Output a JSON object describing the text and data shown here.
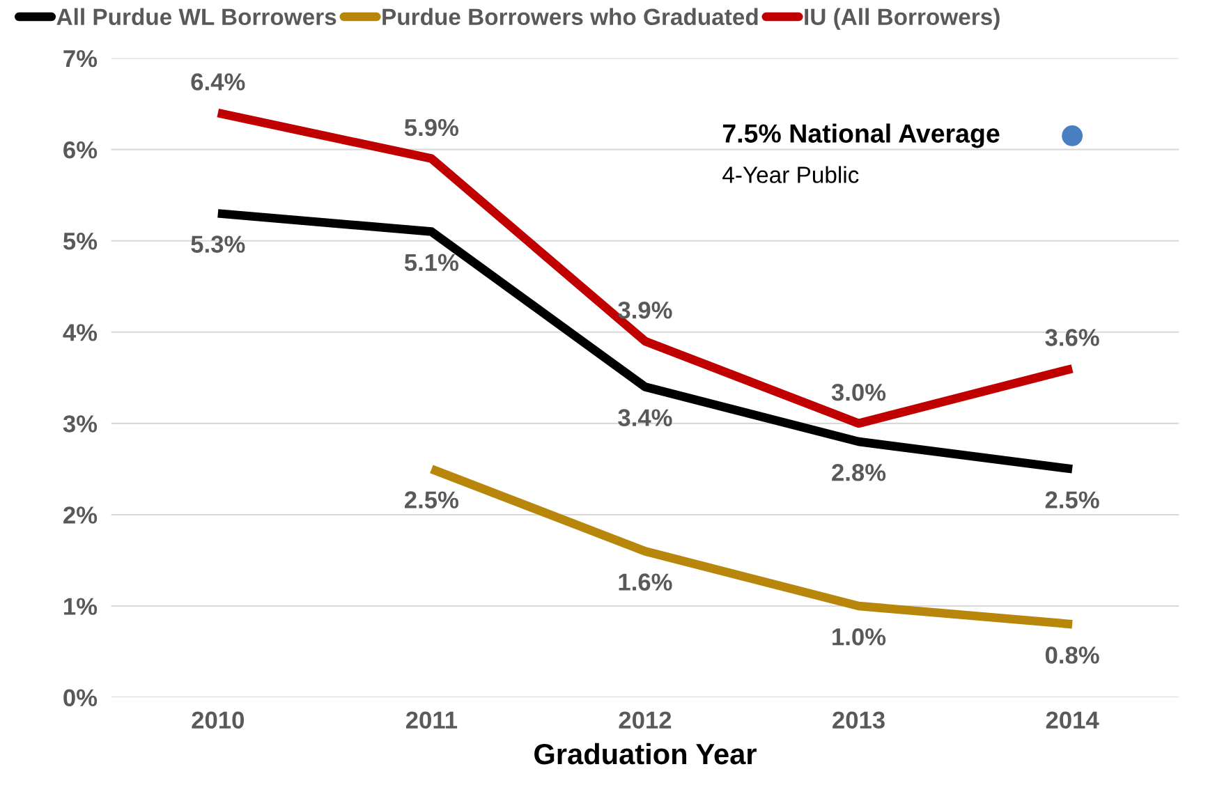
{
  "chart_data": {
    "type": "line",
    "xlabel": "Graduation Year",
    "categories": [
      "2010",
      "2011",
      "2012",
      "2013",
      "2014"
    ],
    "series": [
      {
        "name": "All Purdue WL Borrowers",
        "color": "#000000",
        "values": [
          5.3,
          5.1,
          3.4,
          2.8,
          2.5
        ],
        "value_labels": [
          "5.3%",
          "5.1%",
          "3.4%",
          "2.8%",
          "2.5%"
        ]
      },
      {
        "name": "Purdue Borrowers who Graduated",
        "color": "#b8860b",
        "values": [
          null,
          2.5,
          1.6,
          1.0,
          0.8
        ],
        "value_labels": [
          null,
          "2.5%",
          "1.6%",
          "1.0%",
          "0.8%"
        ]
      },
      {
        "name": "IU (All Borrowers)",
        "color": "#c00000",
        "values": [
          6.4,
          5.9,
          3.9,
          3.0,
          3.6
        ],
        "value_labels": [
          "6.4%",
          "5.9%",
          "3.9%",
          "3.0%",
          "3.6%"
        ]
      }
    ],
    "ylim": [
      0,
      7
    ],
    "yticks": [
      {
        "value": 0,
        "label": "0%"
      },
      {
        "value": 1,
        "label": "1%"
      },
      {
        "value": 2,
        "label": "2%"
      },
      {
        "value": 3,
        "label": "3%"
      },
      {
        "value": 4,
        "label": "4%"
      },
      {
        "value": 5,
        "label": "5%"
      },
      {
        "value": 6,
        "label": "6%"
      },
      {
        "value": 7,
        "label": "7%"
      }
    ],
    "grid": "y",
    "legend": "top",
    "marker": "none",
    "line_style": "solid",
    "annotations": [
      "7.5% National Average",
      "4-Year Public"
    ]
  }
}
